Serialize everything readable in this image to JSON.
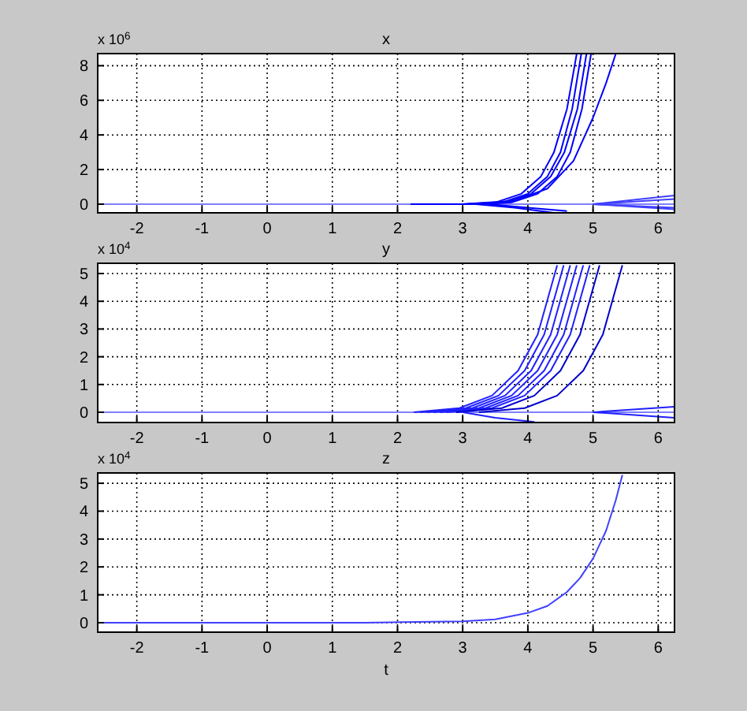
{
  "chart_data": [
    {
      "type": "line",
      "title": "x",
      "annotations": [
        "x 10$^{6}$"
      ],
      "xlim": [
        -2.6,
        6.25
      ],
      "xticks": [
        -2,
        -1,
        0,
        1,
        2,
        3,
        4,
        5,
        6
      ],
      "ylim": [
        -0.5,
        8.7
      ],
      "yticks": [
        0,
        2,
        4,
        6,
        8
      ],
      "grid": true,
      "line_style": "solid",
      "series": [
        {
          "color": "#8080ff",
          "x": [
            -2.6,
            6.25
          ],
          "values": [
            0,
            0
          ]
        },
        {
          "color": "#0000ff",
          "x": [
            2.2,
            3.0,
            3.5,
            3.9,
            4.2,
            4.4,
            4.6,
            4.75
          ],
          "values": [
            0,
            0,
            0.1,
            0.6,
            1.6,
            3,
            5.5,
            8.7
          ]
        },
        {
          "color": "#0000ff",
          "x": [
            2.3,
            3.1,
            3.6,
            4.0,
            4.3,
            4.5,
            4.68,
            4.82
          ],
          "values": [
            0,
            0,
            0.1,
            0.6,
            1.6,
            3,
            5.5,
            8.7
          ]
        },
        {
          "color": "#0000ff",
          "x": [
            2.4,
            3.2,
            3.65,
            4.05,
            4.35,
            4.56,
            4.76,
            4.9
          ],
          "values": [
            0,
            0,
            0.1,
            0.6,
            1.6,
            3,
            5.5,
            8.7
          ]
        },
        {
          "color": "#0000ff",
          "x": [
            2.5,
            3.3,
            3.75,
            4.15,
            4.45,
            4.65,
            4.83,
            4.97
          ],
          "values": [
            0,
            0,
            0.1,
            0.6,
            1.6,
            3,
            5.5,
            8.7
          ]
        },
        {
          "color": "#0000ff",
          "x": [
            2.6,
            3.0,
            3.8,
            4.3,
            4.7,
            5.0,
            5.2,
            5.35
          ],
          "values": [
            0,
            0,
            0.2,
            0.9,
            2.5,
            5,
            7,
            8.7
          ]
        },
        {
          "color": "#0000ff",
          "x": [
            3.2,
            3.8,
            4.4
          ],
          "values": [
            0,
            -0.2,
            -0.5
          ]
        },
        {
          "color": "#0000ff",
          "x": [
            3.4,
            4.0,
            4.6
          ],
          "values": [
            0,
            -0.2,
            -0.4
          ]
        },
        {
          "color": "#4040ff",
          "x": [
            5.0,
            6.25
          ],
          "values": [
            0,
            0.5
          ]
        },
        {
          "color": "#4040ff",
          "x": [
            5.0,
            6.25
          ],
          "values": [
            0,
            0.3
          ]
        },
        {
          "color": "#4040ff",
          "x": [
            5.0,
            6.25
          ],
          "values": [
            0,
            -0.2
          ]
        },
        {
          "color": "#4040ff",
          "x": [
            5.0,
            6.25
          ],
          "values": [
            0,
            -0.3
          ]
        }
      ]
    },
    {
      "type": "line",
      "title": "y",
      "annotations": [
        "x 10$^{4}$"
      ],
      "xlim": [
        -2.6,
        6.25
      ],
      "xticks": [
        -2,
        -1,
        0,
        1,
        2,
        3,
        4,
        5,
        6
      ],
      "ylim": [
        -0.37,
        5.37
      ],
      "yticks": [
        0,
        1,
        2,
        3,
        4,
        5
      ],
      "grid": true,
      "line_style": "solid",
      "series": [
        {
          "color": "#8080ff",
          "x": [
            -2.6,
            6.25
          ],
          "values": [
            0,
            0
          ]
        },
        {
          "color": "#2020ff",
          "x": [
            2.25,
            2.95,
            3.45,
            3.85,
            4.15,
            4.45
          ],
          "values": [
            0,
            0.15,
            0.6,
            1.5,
            2.8,
            5.3
          ]
        },
        {
          "color": "#2020ff",
          "x": [
            2.35,
            3.05,
            3.55,
            3.95,
            4.25,
            4.55
          ],
          "values": [
            0,
            0.15,
            0.6,
            1.5,
            2.8,
            5.3
          ]
        },
        {
          "color": "#2020ff",
          "x": [
            2.45,
            3.15,
            3.65,
            4.05,
            4.35,
            4.65
          ],
          "values": [
            0,
            0.15,
            0.6,
            1.5,
            2.8,
            5.3
          ]
        },
        {
          "color": "#2020ff",
          "x": [
            2.55,
            3.25,
            3.75,
            4.15,
            4.45,
            4.75
          ],
          "values": [
            0,
            0.15,
            0.6,
            1.5,
            2.8,
            5.3
          ]
        },
        {
          "color": "#2020ff",
          "x": [
            2.65,
            3.35,
            3.85,
            4.25,
            4.55,
            4.85
          ],
          "values": [
            0,
            0.15,
            0.6,
            1.5,
            2.8,
            5.3
          ]
        },
        {
          "color": "#2020ff",
          "x": [
            2.75,
            3.45,
            3.95,
            4.35,
            4.65,
            4.95
          ],
          "values": [
            0,
            0.15,
            0.6,
            1.5,
            2.8,
            5.3
          ]
        },
        {
          "color": "#0000cc",
          "x": [
            2.9,
            3.6,
            4.1,
            4.5,
            4.8,
            5.1
          ],
          "values": [
            0,
            0.15,
            0.6,
            1.5,
            2.8,
            5.3
          ]
        },
        {
          "color": "#0000cc",
          "x": [
            3.25,
            3.95,
            4.45,
            4.85,
            5.15,
            5.45
          ],
          "values": [
            0,
            0.15,
            0.6,
            1.5,
            2.8,
            5.3
          ]
        },
        {
          "color": "#2020ff",
          "x": [
            3.0,
            3.5,
            4.1
          ],
          "values": [
            0,
            -0.2,
            -0.35
          ]
        },
        {
          "color": "#2020ff",
          "x": [
            5.0,
            6.25
          ],
          "values": [
            0,
            0.2
          ]
        },
        {
          "color": "#2020ff",
          "x": [
            5.0,
            6.25
          ],
          "values": [
            0,
            -0.2
          ]
        }
      ]
    },
    {
      "type": "line",
      "title": "z",
      "xlabel": "t",
      "annotations": [
        "x 10$^{4}$"
      ],
      "xlim": [
        -2.6,
        6.25
      ],
      "xticks": [
        -2,
        -1,
        0,
        1,
        2,
        3,
        4,
        5,
        6
      ],
      "ylim": [
        -0.34,
        5.37
      ],
      "yticks": [
        0,
        1,
        2,
        3,
        4,
        5
      ],
      "grid": true,
      "line_style": "solid",
      "series": [
        {
          "color": "#4040ff",
          "x": [
            -2.6,
            1.5,
            3,
            3.5,
            4,
            4.3,
            4.6,
            4.8,
            5,
            5.2,
            5.35,
            5.45
          ],
          "values": [
            0,
            0,
            0.05,
            0.12,
            0.35,
            0.6,
            1.1,
            1.6,
            2.3,
            3.3,
            4.4,
            5.3
          ]
        }
      ]
    }
  ]
}
